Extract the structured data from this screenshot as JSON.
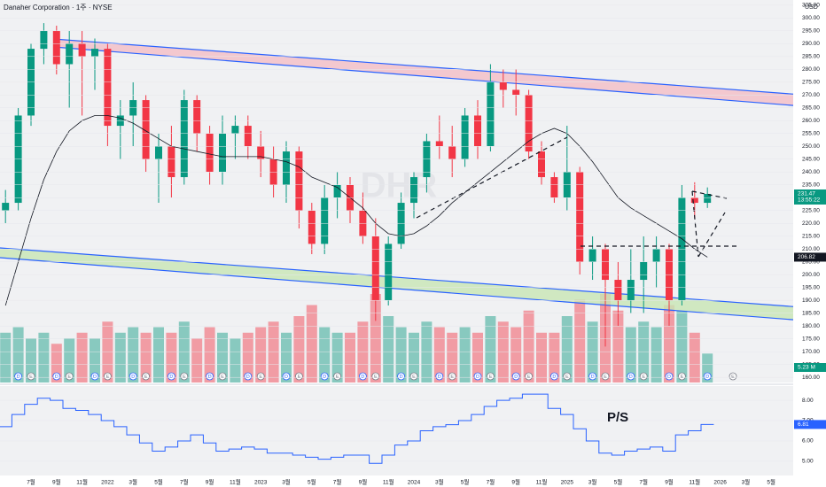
{
  "header": {
    "title": "Danaher Corporation · 1주 · NYSE",
    "currency": "USD",
    "watermark": "DHR"
  },
  "chart_data": [
    {
      "type": "candlestick",
      "categories": [
        null,
        null,
        "7월",
        null,
        "9월",
        null,
        "11월",
        null,
        "2022",
        null,
        "3월",
        null,
        "5월",
        null,
        "7월",
        null,
        "9월",
        null,
        "11월",
        null,
        "2023",
        null,
        "3월",
        null,
        "5월",
        null,
        "7월",
        null,
        "9월",
        null,
        "11월",
        null,
        "2024",
        null,
        "3월",
        null,
        "5월",
        null,
        "7월",
        null,
        "9월",
        null,
        "11월",
        null,
        "2025",
        null,
        "3월",
        null,
        "5월",
        null,
        "7월",
        null,
        "9월",
        null,
        "11월",
        null,
        "2026",
        null,
        "3월",
        null,
        "5월"
      ],
      "open": [
        225,
        228,
        262,
        288,
        295,
        282,
        290,
        285,
        288,
        258,
        262,
        268,
        245,
        250,
        238,
        268,
        255,
        240,
        255,
        258,
        250,
        245,
        235,
        248,
        225,
        212,
        230,
        235,
        225,
        215,
        190,
        212,
        228,
        238,
        252,
        250,
        245,
        262,
        250,
        275,
        272,
        270,
        248,
        238,
        230,
        240,
        205,
        210,
        198,
        190,
        198,
        205,
        210,
        190,
        230,
        228,
        null,
        null,
        null,
        null,
        null
      ],
      "high": [
        233,
        265,
        290,
        298,
        297,
        295,
        295,
        292,
        290,
        268,
        275,
        270,
        255,
        258,
        272,
        270,
        258,
        262,
        262,
        262,
        256,
        250,
        252,
        250,
        228,
        235,
        240,
        238,
        232,
        222,
        215,
        232,
        240,
        255,
        262,
        258,
        265,
        268,
        282,
        280,
        280,
        272,
        252,
        240,
        258,
        242,
        215,
        212,
        205,
        210,
        215,
        215,
        212,
        235,
        236,
        234,
        null,
        null,
        null,
        null,
        null
      ],
      "low": [
        220,
        225,
        258,
        282,
        278,
        265,
        262,
        272,
        250,
        245,
        250,
        240,
        228,
        230,
        235,
        248,
        235,
        235,
        245,
        245,
        238,
        230,
        228,
        218,
        208,
        208,
        222,
        220,
        212,
        182,
        188,
        210,
        222,
        232,
        245,
        238,
        242,
        245,
        248,
        265,
        262,
        245,
        235,
        228,
        225,
        200,
        198,
        172,
        180,
        185,
        185,
        195,
        180,
        188,
        222,
        226,
        null,
        null,
        null,
        null,
        null
      ],
      "close": [
        228,
        262,
        288,
        295,
        282,
        290,
        285,
        288,
        258,
        262,
        268,
        245,
        250,
        238,
        268,
        255,
        240,
        255,
        258,
        250,
        245,
        235,
        248,
        225,
        212,
        230,
        235,
        225,
        215,
        190,
        212,
        228,
        238,
        252,
        250,
        245,
        262,
        250,
        275,
        272,
        270,
        248,
        238,
        230,
        240,
        205,
        210,
        198,
        190,
        198,
        205,
        210,
        190,
        230,
        228,
        231.47,
        null,
        null,
        null,
        null,
        null
      ],
      "up_color": "#089981",
      "down_color": "#f23645",
      "countdown": "13:55:22",
      "ma": {
        "color": "#131722",
        "values": [
          188,
          205,
          222,
          237,
          248,
          256,
          260,
          262,
          262,
          261,
          259,
          256,
          253,
          250,
          249,
          248,
          247,
          246,
          246,
          246,
          246,
          245,
          244,
          242,
          238,
          236,
          234,
          230,
          226,
          220,
          216,
          215,
          216,
          219,
          223,
          228,
          232,
          236,
          240,
          244,
          248,
          252,
          255,
          257,
          255,
          250,
          244,
          237,
          230,
          226,
          223,
          220,
          217,
          214,
          210,
          206.82,
          null,
          null,
          null,
          null,
          null
        ]
      },
      "volume": {
        "values": [
          9,
          10,
          8,
          9,
          7,
          8,
          9,
          8,
          11,
          9,
          10,
          9,
          10,
          9,
          11,
          8,
          10,
          9,
          8,
          9,
          10,
          11,
          9,
          12,
          14,
          10,
          9,
          9,
          11,
          16,
          12,
          10,
          9,
          11,
          10,
          9,
          10,
          9,
          12,
          11,
          10,
          13,
          9,
          9,
          12,
          15,
          11,
          16,
          13,
          10,
          11,
          10,
          14,
          13,
          9,
          5.23,
          null,
          null,
          null,
          null,
          null
        ],
        "value_labels": [
          null,
          null,
          null,
          null,
          null,
          null,
          null,
          null,
          null,
          null,
          null,
          null,
          null,
          null,
          null,
          null,
          null,
          null,
          null,
          null,
          null,
          null,
          null,
          null,
          null,
          null,
          null,
          null,
          null,
          null,
          null,
          null,
          null,
          null,
          null,
          null,
          null,
          null,
          null,
          null,
          null,
          null,
          null,
          null,
          null,
          null,
          null,
          null,
          null,
          null,
          null,
          null,
          null,
          null,
          null,
          "5.23 M",
          null,
          null,
          null,
          null,
          null
        ]
      },
      "events": [
        null,
        "D",
        "E",
        null,
        "D",
        "E",
        null,
        "D",
        "E",
        null,
        "D",
        "E",
        null,
        "D",
        "E",
        null,
        "D",
        "E",
        null,
        "D",
        "E",
        null,
        "D",
        "E",
        null,
        "D",
        "E",
        null,
        "D",
        "E",
        null,
        "D",
        "E",
        null,
        "D",
        "E",
        null,
        "D",
        "E",
        null,
        "D",
        "E",
        null,
        "D",
        "E",
        null,
        "D",
        "E",
        null,
        "D",
        "E",
        null,
        "D",
        "E",
        null,
        "D",
        null,
        "E",
        null,
        null,
        null
      ],
      "ylim": [
        158,
        307
      ],
      "yticks": [
        {
          "value": 305,
          "label": "305.00"
        },
        {
          "value": 300,
          "label": "300.00"
        },
        {
          "value": 295,
          "label": "295.00"
        },
        {
          "value": 290,
          "label": "290.00"
        },
        {
          "value": 285,
          "label": "285.00"
        },
        {
          "value": 280,
          "label": "280.00"
        },
        {
          "value": 275,
          "label": "275.00"
        },
        {
          "value": 270,
          "label": "270.00"
        },
        {
          "value": 265,
          "label": "265.00"
        },
        {
          "value": 260,
          "label": "260.00"
        },
        {
          "value": 255,
          "label": "255.00"
        },
        {
          "value": 250,
          "label": "250.00"
        },
        {
          "value": 245,
          "label": "245.00"
        },
        {
          "value": 240,
          "label": "240.00"
        },
        {
          "value": 235,
          "label": "235.00"
        },
        {
          "value": 230,
          "label": "230.00"
        },
        {
          "value": 225,
          "label": "225.00"
        },
        {
          "value": 220,
          "label": "220.00"
        },
        {
          "value": 215,
          "label": "215.00"
        },
        {
          "value": 210,
          "label": "210.00"
        },
        {
          "value": 205,
          "label": "205.00"
        },
        {
          "value": 200,
          "label": "200.00"
        },
        {
          "value": 195,
          "label": "195.00"
        },
        {
          "value": 190,
          "label": "190.00"
        },
        {
          "value": 185,
          "label": "185.00"
        },
        {
          "value": 180,
          "label": "180.00"
        },
        {
          "value": 175,
          "label": "175.00"
        },
        {
          "value": 170,
          "label": "170.00"
        },
        {
          "value": 165,
          "label": "165.00"
        },
        {
          "value": 160,
          "label": "160.00"
        }
      ]
    },
    {
      "type": "line",
      "title": "P/S",
      "color": "#2962ff",
      "values": [
        6.7,
        7.3,
        7.8,
        8.1,
        8.0,
        7.6,
        7.5,
        7.3,
        7.0,
        6.7,
        6.3,
        5.9,
        5.5,
        5.7,
        6.0,
        6.3,
        5.9,
        5.5,
        5.6,
        5.7,
        5.6,
        5.4,
        5.4,
        5.3,
        5.2,
        5.1,
        5.2,
        5.3,
        5.3,
        4.9,
        5.3,
        5.8,
        6.0,
        6.5,
        6.7,
        6.8,
        7.0,
        7.3,
        7.7,
        8.0,
        8.1,
        8.3,
        8.3,
        7.6,
        7.3,
        6.6,
        6.0,
        5.4,
        5.3,
        5.5,
        5.6,
        5.7,
        5.5,
        6.3,
        6.5,
        6.81,
        null,
        null,
        null,
        null,
        null
      ],
      "ylim": [
        4.3,
        8.7
      ],
      "yticks": [
        {
          "value": 8,
          "label": "8.00"
        },
        {
          "value": 7,
          "label": "7.00"
        },
        {
          "value": 6,
          "label": "6.00"
        },
        {
          "value": 5,
          "label": "5.00"
        }
      ]
    }
  ]
}
